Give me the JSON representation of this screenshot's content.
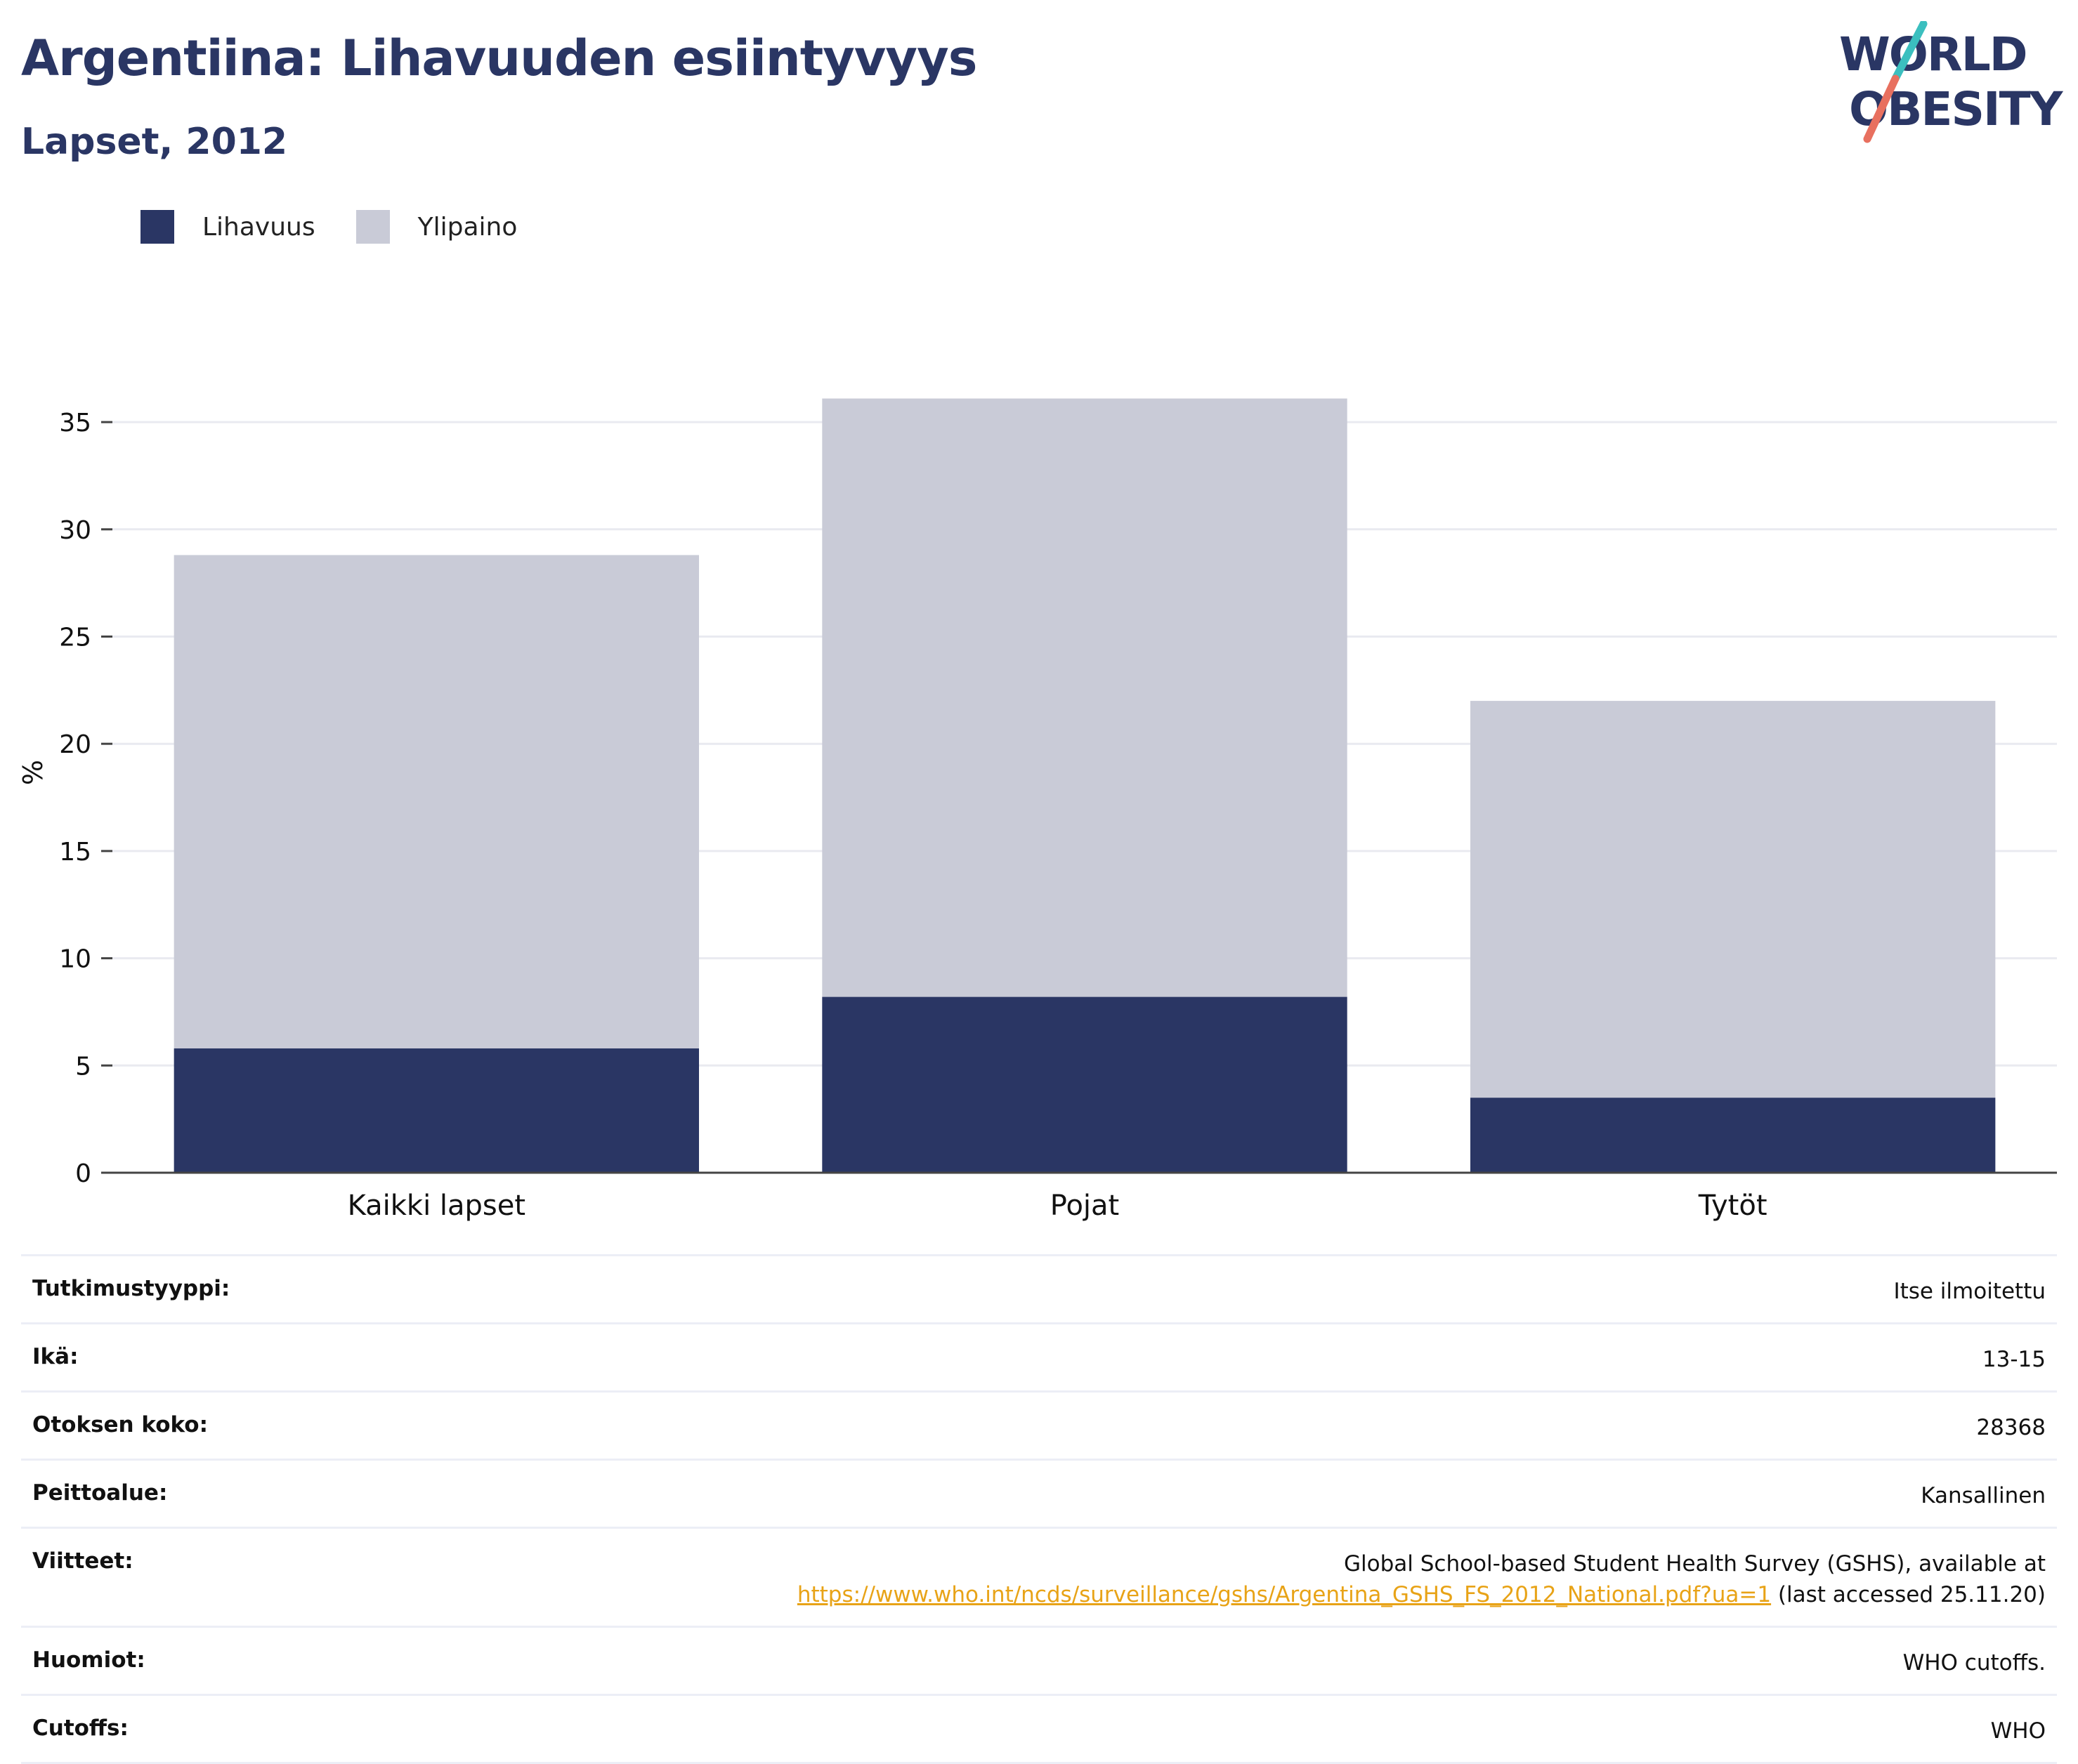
{
  "header": {
    "title": "Argentiina: Lihavuuden esiintyvyys",
    "subtitle": "Lapset, 2012"
  },
  "logo": {
    "line1": "WORLD",
    "line2": "OBESITY",
    "text_color": "#2a3664",
    "slash_teal": "#3bbfbf",
    "slash_coral": "#e8705f"
  },
  "legend": [
    {
      "label": "Lihavuus",
      "color": "#2a3664"
    },
    {
      "label": "Ylipaino",
      "color": "#c9cbd7"
    }
  ],
  "chart_data": {
    "type": "bar",
    "stacked": true,
    "categories": [
      "Kaikki lapset",
      "Pojat",
      "Tytöt"
    ],
    "series": [
      {
        "name": "Lihavuus",
        "values": [
          5.8,
          8.2,
          3.5
        ],
        "color": "#2a3664"
      },
      {
        "name": "Ylipaino",
        "values": [
          23.0,
          27.9,
          18.5
        ],
        "color": "#c9cbd7"
      }
    ],
    "title": "Argentiina: Lihavuuden esiintyvyys",
    "subtitle": "Lapset, 2012",
    "xlabel": "",
    "ylabel": "%",
    "ylim": [
      0,
      37
    ],
    "yticks": [
      0,
      5,
      10,
      15,
      20,
      25,
      30,
      35
    ],
    "grid": true,
    "legend_position": "top-left"
  },
  "info": {
    "rows": [
      {
        "key": "Tutkimustyyppi:",
        "value": "Itse ilmoitettu"
      },
      {
        "key": "Ikä:",
        "value": "13-15"
      },
      {
        "key": "Otoksen koko:",
        "value": "28368"
      },
      {
        "key": "Peittoalue:",
        "value": "Kansallinen"
      },
      {
        "key": "Viitteet:",
        "value": "Global School-based Student Health Survey (GSHS), available at",
        "link": "https://www.who.int/ncds/surveillance/gshs/Argentina_GSHS_FS_2012_National.pdf?ua=1",
        "suffix": " (last accessed 25.11.20)"
      },
      {
        "key": "Huomiot:",
        "value": "WHO cutoffs."
      },
      {
        "key": "Cutoffs:",
        "value": "WHO"
      }
    ]
  }
}
